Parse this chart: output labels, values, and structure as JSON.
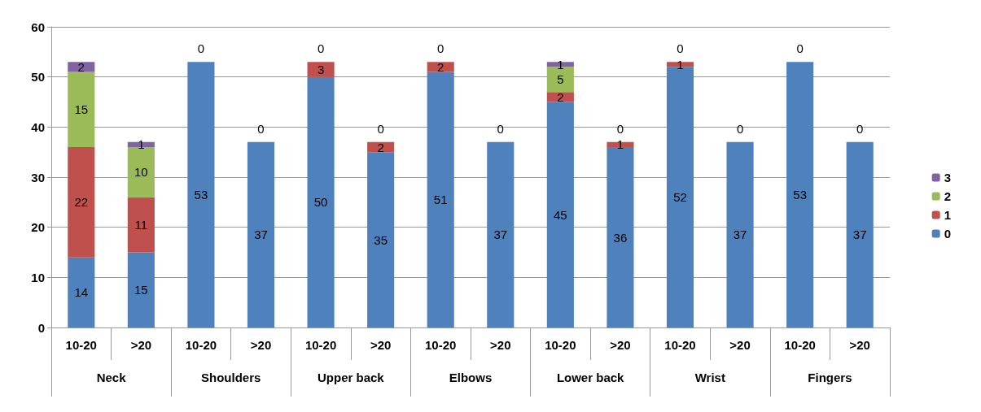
{
  "chart_data": {
    "type": "bar",
    "stacked": true,
    "categories": [
      "10-20",
      ">20",
      "10-20",
      ">20",
      "10-20",
      ">20",
      "10-20",
      ">20",
      "10-20",
      ">20",
      "10-20",
      ">20",
      "10-20",
      ">20"
    ],
    "annotations": [
      "Neck",
      "Shoulders",
      "Upper back",
      "Elbows",
      "Lower back",
      "Wrist",
      "Fingers"
    ],
    "series": [
      {
        "name": "0",
        "color": "#4f81bd",
        "values": [
          14,
          15,
          53,
          37,
          50,
          35,
          51,
          37,
          45,
          36,
          52,
          37,
          53,
          37
        ],
        "value_labels": [
          "14",
          "15",
          "53",
          "37",
          "50",
          "35",
          "51",
          "37",
          "45",
          "36",
          "52",
          "37",
          "53",
          "37"
        ]
      },
      {
        "name": "1",
        "color": "#c0504d",
        "values": [
          22,
          11,
          0,
          0,
          3,
          2,
          2,
          0,
          2,
          1,
          1,
          0,
          0,
          0
        ],
        "value_labels": [
          "22",
          "11",
          null,
          null,
          "3",
          "2",
          "2",
          null,
          "2",
          "1",
          "1",
          null,
          null,
          null
        ]
      },
      {
        "name": "2",
        "color": "#9bbb59",
        "values": [
          15,
          10,
          0,
          0,
          0,
          0,
          0,
          0,
          5,
          0,
          0,
          0,
          0,
          0
        ],
        "value_labels": [
          "15",
          "10",
          null,
          null,
          null,
          null,
          null,
          null,
          "5",
          null,
          null,
          null,
          null,
          null
        ]
      },
      {
        "name": "3",
        "color": "#8064a2",
        "values": [
          2,
          1,
          0,
          0,
          0,
          0,
          0,
          0,
          1,
          0,
          0,
          0,
          0,
          0
        ],
        "value_labels": [
          "2",
          "1",
          "0",
          "0",
          "0",
          "0",
          "0",
          "0",
          "1",
          "0",
          "0",
          "0",
          "0",
          "0"
        ]
      }
    ],
    "ylim": [
      0,
      60
    ],
    "yticks": [
      0,
      10,
      20,
      30,
      40,
      50,
      60
    ],
    "grid": "y",
    "legend": "right"
  }
}
